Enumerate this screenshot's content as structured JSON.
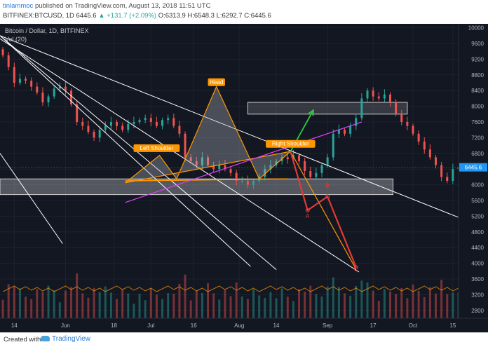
{
  "header": {
    "author": "tinlammoc",
    "published": "published on TradingView.com, August 13, 2018 11:51 UTC",
    "symbol_line_prefix": "BITFINEX:BTCUSD, 1D 6445.6",
    "change": "▲ +131.7 (+2.09%)",
    "ohlc": "O:6313.9 H:6548.3 L:6292.7 C:6445.6"
  },
  "chart_title": "Bitcoin / Dollar, 1D, BITFINEX",
  "vol_label": "Vol (20)",
  "footer": {
    "created_with": "Created with",
    "brand": "TradingView"
  },
  "colors": {
    "background": "#131722",
    "up": "#26a69a",
    "down": "#ef5350",
    "trendline": "#ffffff",
    "neckline": "#ff9800",
    "magenta": "#e040fb",
    "label_bg": "#ff9800",
    "price_tag": "#2196f3"
  },
  "chart_data": {
    "type": "candlestick",
    "price_axis": {
      "ylim": [
        2600,
        10100
      ],
      "ticks": [
        10000,
        9600,
        9200,
        8800,
        8400,
        8000,
        7600,
        7200,
        6800,
        6400,
        6000,
        5600,
        5200,
        4800,
        4400,
        4000,
        3600,
        3200,
        2800
      ]
    },
    "last_price": 6445.6,
    "x_axis": {
      "range": [
        "2018-05-09",
        "2018-10-17"
      ],
      "ticks": [
        {
          "label": "14",
          "date": "2018-05-14"
        },
        {
          "label": "Jun",
          "date": "2018-06-01"
        },
        {
          "label": "18",
          "date": "2018-06-18"
        },
        {
          "label": "Jul",
          "date": "2018-07-01"
        },
        {
          "label": "16",
          "date": "2018-07-16"
        },
        {
          "label": "Aug",
          "date": "2018-08-01"
        },
        {
          "label": "14",
          "date": "2018-08-14"
        },
        {
          "label": "Sep",
          "date": "2018-09-01"
        },
        {
          "label": "17",
          "date": "2018-09-17"
        },
        {
          "label": "Oct",
          "date": "2018-10-01"
        },
        {
          "label": "15",
          "date": "2018-10-15"
        }
      ]
    },
    "close_series": {
      "start_date": "2018-05-10",
      "closes": [
        9300,
        9000,
        8600,
        8700,
        8650,
        8500,
        8350,
        8100,
        8250,
        8450,
        8500,
        8400,
        8050,
        7600,
        7500,
        7350,
        7200,
        7400,
        7500,
        7600,
        7500,
        7400,
        7550,
        7600,
        7650,
        7700,
        7600,
        7500,
        7650,
        7700,
        7500,
        7300,
        6700,
        6600,
        6500,
        6700,
        6500,
        6400,
        6500,
        6400,
        6300,
        6100,
        6100,
        6000,
        6100,
        6200,
        6400,
        6500,
        6600,
        6700,
        6650,
        6750,
        6600,
        6350,
        6200,
        6300,
        6500,
        6700,
        7300,
        7400,
        7300,
        7500,
        7700,
        8200,
        8400,
        8250,
        8200,
        8300,
        8100,
        7800,
        7600,
        7500,
        7300,
        7100,
        6900,
        6700,
        6500,
        6200,
        6100,
        6400,
        6445.6
      ]
    },
    "volume": {
      "scale": "relative",
      "note": "Vol (20)"
    },
    "annotations": {
      "labels": [
        {
          "text": "Left Shoulder",
          "date": "2018-07-03",
          "price": 6870
        },
        {
          "text": "Head",
          "date": "2018-07-24",
          "price": 8550
        },
        {
          "text": "Right Shoulder",
          "date": "2018-08-19",
          "price": 6980
        }
      ],
      "pattern_points": [
        {
          "date": "2018-06-22",
          "price": 6050
        },
        {
          "date": "2018-07-04",
          "price": 6750
        },
        {
          "date": "2018-07-10",
          "price": 6150
        },
        {
          "date": "2018-07-24",
          "price": 8500
        },
        {
          "date": "2018-08-08",
          "price": 6150
        },
        {
          "date": "2018-08-19",
          "price": 6850
        }
      ],
      "neckline": {
        "from": {
          "date": "2018-06-22",
          "price": 6100
        },
        "to": {
          "date": "2018-08-18",
          "price": 6150
        }
      },
      "support_zone": {
        "from_date": "2018-05-09",
        "to_date": "2018-09-24",
        "low": 5750,
        "high": 6150
      },
      "target_zone": {
        "from_date": "2018-08-04",
        "to_date": "2018-09-29",
        "low": 7800,
        "high": 8100
      },
      "magenta_line": {
        "from": {
          "date": "2018-06-22",
          "price": 5550
        },
        "to": {
          "date": "2018-09-13",
          "price": 7600
        }
      },
      "green_arrow": {
        "from": {
          "date": "2018-08-19",
          "price": 6850
        },
        "to": {
          "date": "2018-08-27",
          "price": 7900
        }
      },
      "red_path": [
        {
          "date": "2018-08-19",
          "price": 6850
        },
        {
          "date": "2018-08-25",
          "price": 5350
        },
        {
          "date": "2018-09-01",
          "price": 5700
        },
        {
          "date": "2018-09-11",
          "price": 3900
        }
      ],
      "orange_projection": {
        "from": {
          "date": "2018-08-19",
          "price": 6850
        },
        "to": {
          "date": "2018-09-11",
          "price": 3850
        }
      },
      "point_labels": [
        {
          "text": "A",
          "date": "2018-08-25",
          "price": 5150
        },
        {
          "text": "B",
          "date": "2018-09-01",
          "price": 5930
        },
        {
          "text": "C",
          "date": "2018-09-11",
          "price": 3800
        }
      ],
      "trendlines": [
        {
          "from": {
            "date": "2018-05-09",
            "price": 9800
          },
          "to": {
            "date": "2018-10-17",
            "price": 5170
          }
        },
        {
          "from": {
            "date": "2018-05-09",
            "price": 9800
          },
          "to": {
            "date": "2018-08-05",
            "price": 3920
          }
        },
        {
          "from": {
            "date": "2018-05-09",
            "price": 9800
          },
          "to": {
            "date": "2018-08-14",
            "price": 3840
          }
        },
        {
          "from": {
            "date": "2018-05-09",
            "price": 9720
          },
          "to": {
            "date": "2018-09-12",
            "price": 3780
          }
        },
        {
          "from": {
            "date": "2018-05-09",
            "price": 6800
          },
          "to": {
            "date": "2018-05-31",
            "price": 4500
          }
        }
      ]
    }
  }
}
